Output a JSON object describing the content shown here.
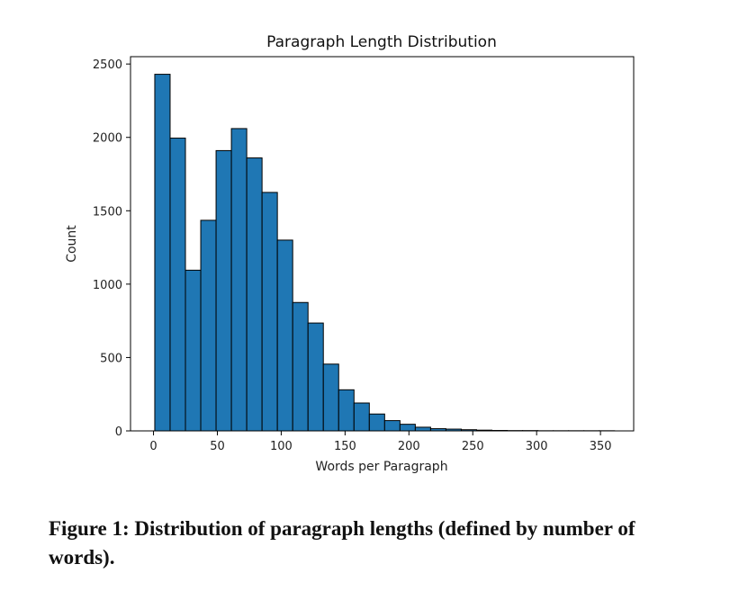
{
  "chart_data": {
    "type": "bar",
    "title": "Paragraph Length Distribution",
    "xlabel": "Words per Paragraph",
    "ylabel": "Count",
    "xlim": [
      -18,
      376
    ],
    "ylim": [
      0,
      2550
    ],
    "x_ticks": [
      0,
      50,
      100,
      150,
      200,
      250,
      300,
      350
    ],
    "y_ticks": [
      0,
      500,
      1000,
      1500,
      2000,
      2500
    ],
    "bin_edges": [
      1,
      13,
      25,
      37,
      49,
      61,
      73,
      85,
      97,
      109,
      121,
      133,
      145,
      157,
      169,
      181,
      193,
      205,
      217,
      229,
      241,
      253,
      265,
      277,
      289,
      301,
      313,
      325,
      337,
      349,
      361
    ],
    "values": [
      2430,
      1995,
      1095,
      1435,
      1910,
      2060,
      1860,
      1625,
      1300,
      875,
      735,
      455,
      280,
      190,
      115,
      70,
      45,
      25,
      15,
      12,
      8,
      5,
      3,
      2,
      2,
      1,
      1,
      1,
      1,
      1
    ],
    "grid": false,
    "bar_color": "#1f77b4",
    "edge_color": "#000000"
  },
  "caption": "Figure 1: Distribution of paragraph lengths (defined by number of words)."
}
